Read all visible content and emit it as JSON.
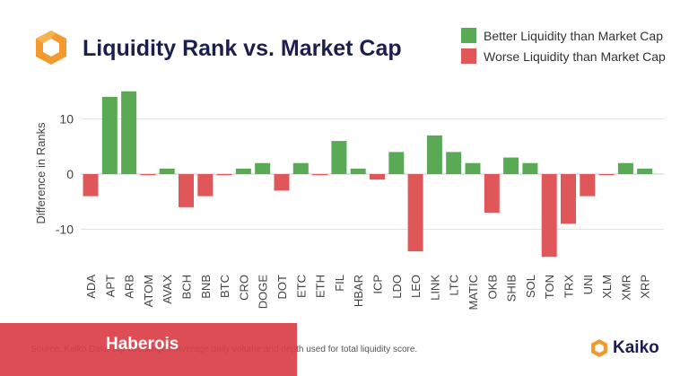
{
  "header": {
    "title": "Liquidity Rank vs. Market Cap"
  },
  "legend": [
    {
      "label": "Better Liquidity than Market Cap",
      "color": "#5aaa55"
    },
    {
      "label": "Worse Liquidity than Market Cap",
      "color": "#e05759"
    }
  ],
  "footer": {
    "source": "Source: Kaiko Data, top exchanges. Average daily volume and depth used for total liquidity score.",
    "banner": "Haberois",
    "brand": "Kaiko",
    "banner_color": "#da3e46",
    "brand_color": "#f29a2e"
  },
  "chart_data": {
    "type": "bar",
    "title": "Liquidity Rank vs. Market Cap",
    "xlabel": "",
    "ylabel": "Difference in Ranks",
    "ylim": [
      -17,
      17
    ],
    "yticks": [
      -10,
      0,
      10
    ],
    "grid": true,
    "legend_position": "top-right",
    "categories": [
      "ADA",
      "APT",
      "ARB",
      "ATOM",
      "AVAX",
      "BCH",
      "BNB",
      "BTC",
      "CRO",
      "DOGE",
      "DOT",
      "ETC",
      "ETH",
      "FIL",
      "HBAR",
      "ICP",
      "LDO",
      "LEO",
      "LINK",
      "LTC",
      "MATIC",
      "OKB",
      "SHIB",
      "SOL",
      "TON",
      "TRX",
      "UNI",
      "XLM",
      "XMR",
      "XRP"
    ],
    "values": [
      -4,
      14,
      15,
      -0.2,
      1,
      -6,
      -4,
      -0.2,
      1,
      2,
      -3,
      2,
      -0.2,
      6,
      1,
      -1,
      4,
      -14,
      7,
      4,
      2,
      -7,
      3,
      2,
      -15,
      -9,
      -4,
      -0.2,
      2,
      1
    ],
    "colors": {
      "positive": "#5aaa55",
      "negative": "#e05759"
    }
  }
}
